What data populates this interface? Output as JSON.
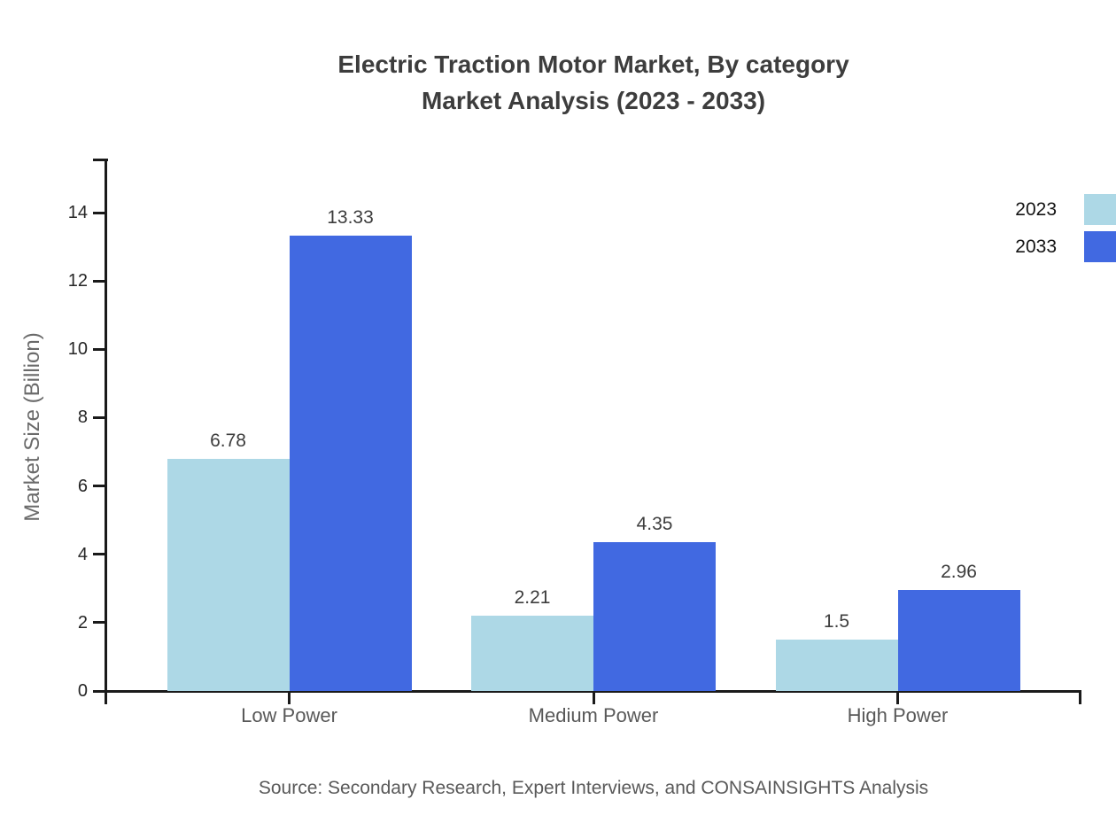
{
  "title": {
    "line1": "Electric Traction Motor Market, By category",
    "line2": "Market Analysis (2023 - 2033)"
  },
  "source": "Source: Secondary Research, Expert Interviews, and CONSAINSIGHTS Analysis",
  "chart_data": {
    "type": "bar",
    "title": "Electric Traction Motor Market, By category Market Analysis (2023 - 2033)",
    "xlabel": "",
    "ylabel": "Market Size (Billion)",
    "categories": [
      "Low Power",
      "Medium Power",
      "High Power"
    ],
    "series": [
      {
        "name": "2023",
        "color": "#ADD8E6",
        "values": [
          6.78,
          2.21,
          1.5
        ]
      },
      {
        "name": "2033",
        "color": "#4169E1",
        "values": [
          13.33,
          4.35,
          2.96
        ]
      }
    ],
    "value_labels": [
      [
        "6.78",
        "2.21",
        "1.5"
      ],
      [
        "13.33",
        "4.35",
        "2.96"
      ]
    ],
    "yticks": [
      0,
      2,
      4,
      6,
      8,
      10,
      12,
      14
    ],
    "ylim": [
      0,
      15.55
    ],
    "grid": false,
    "legend_position": "top-right",
    "axis_color": "#1a1a1a"
  }
}
